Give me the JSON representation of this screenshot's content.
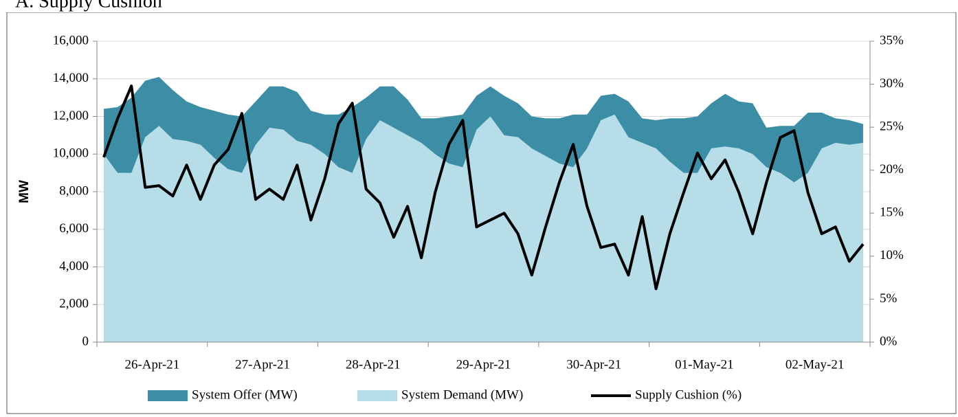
{
  "chart_data": {
    "type": "area_line",
    "title": "A. Supply Cushion",
    "y_label": "MW",
    "categories": [
      null,
      null,
      null,
      null,
      "26-Apr-21",
      null,
      null,
      null,
      null,
      null,
      null,
      null,
      "27-Apr-21",
      null,
      null,
      null,
      null,
      null,
      null,
      null,
      "28-Apr-21",
      null,
      null,
      null,
      null,
      null,
      null,
      null,
      "29-Apr-21",
      null,
      null,
      null,
      null,
      null,
      null,
      null,
      "30-Apr-21",
      null,
      null,
      null,
      null,
      null,
      null,
      null,
      "01-May-21",
      null,
      null,
      null,
      null,
      null,
      null,
      null,
      "02-May-21",
      null,
      null,
      null
    ],
    "series": [
      {
        "name": "System Offer (MW)",
        "color": "#3b8ea5",
        "values": [
          12400,
          12500,
          13000,
          13900,
          14100,
          13400,
          12800,
          12500,
          12300,
          12100,
          12000,
          12800,
          13600,
          13600,
          13300,
          12300,
          12100,
          12100,
          12500,
          13000,
          13600,
          13600,
          12900,
          11900,
          11900,
          12000,
          12100,
          13100,
          13600,
          13100,
          12700,
          12000,
          11900,
          11900,
          12100,
          12100,
          13100,
          13200,
          12800,
          11900,
          11800,
          11900,
          11900,
          12000,
          12700,
          13200,
          12800,
          12700,
          11400,
          11500,
          11500,
          12200,
          12200,
          11900,
          11800,
          11600
        ]
      },
      {
        "name": "System Demand (MW)",
        "color": "#b7dde8",
        "values": [
          10000,
          9000,
          9000,
          10900,
          11500,
          10800,
          10700,
          10500,
          9800,
          9200,
          9000,
          10500,
          11400,
          11300,
          10700,
          10500,
          10000,
          9300,
          9000,
          10800,
          11800,
          11400,
          11000,
          10600,
          10000,
          9500,
          9300,
          11300,
          12000,
          11000,
          10900,
          10300,
          9900,
          9500,
          9300,
          10300,
          11800,
          12100,
          10900,
          10600,
          10300,
          9600,
          9000,
          9000,
          10300,
          10400,
          10300,
          10000,
          9300,
          9000,
          8500,
          9000,
          10300,
          10600,
          10500,
          10600
        ]
      },
      {
        "name": "Supply Cushion (%)",
        "color": "#000000",
        "axis": "y2",
        "values": [
          21.5,
          26,
          29.8,
          18,
          18.2,
          17,
          20.6,
          16.6,
          20.6,
          22.4,
          26.6,
          16.6,
          17.8,
          16.6,
          20.6,
          14.2,
          19,
          25.4,
          27.8,
          17.8,
          16.2,
          12.2,
          15.8,
          9.8,
          17.4,
          23,
          25.8,
          13.4,
          14.2,
          15,
          12.6,
          7.8,
          13.4,
          18.6,
          23,
          15.8,
          11,
          11.4,
          7.8,
          14.6,
          6.2,
          12.6,
          17.4,
          22,
          19,
          21.2,
          17.4,
          12.6,
          18.6,
          23.8,
          24.6,
          17.4,
          12.6,
          13.4,
          9.4,
          11.4
        ]
      }
    ],
    "ylim": [
      0,
      16000
    ],
    "yticks": [
      0,
      {
        "value": 2000,
        "label": "2,000"
      },
      {
        "value": 4000,
        "label": "4,000"
      },
      {
        "value": 6000,
        "label": "6,000"
      },
      {
        "value": 8000,
        "label": "8,000"
      },
      {
        "value": 10000,
        "label": "10,000"
      },
      {
        "value": 12000,
        "label": "12,000"
      },
      {
        "value": 14000,
        "label": "14,000"
      },
      {
        "value": 16000,
        "label": "16,000"
      }
    ],
    "y2lim": [
      0,
      35
    ],
    "y2ticks": [
      {
        "value": 0,
        "label": "0%"
      },
      {
        "value": 5,
        "label": "5%"
      },
      {
        "value": 10,
        "label": "10%"
      },
      {
        "value": 15,
        "label": "15%"
      },
      {
        "value": 20,
        "label": "20%"
      },
      {
        "value": 25,
        "label": "25%"
      },
      {
        "value": 30,
        "label": "30%"
      },
      {
        "value": 35,
        "label": "35%"
      }
    ],
    "grid": true,
    "legend": "bottom"
  }
}
